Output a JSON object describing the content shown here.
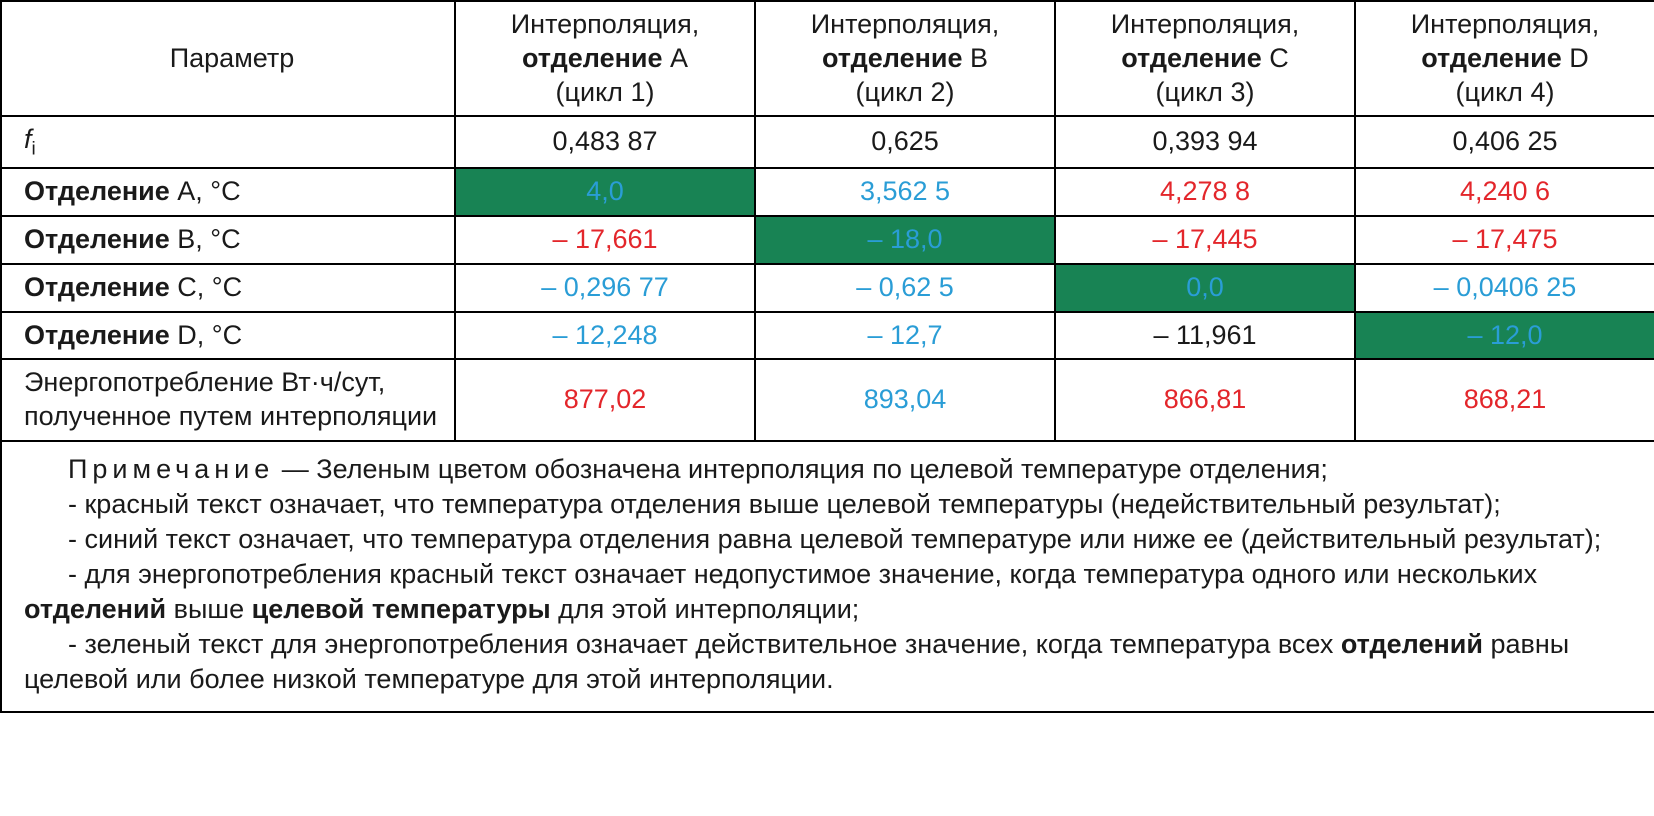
{
  "colors": {
    "text": "#1a1a1a",
    "red": "#e3262b",
    "blue": "#2a9dd6",
    "green_bg": "#188354",
    "border": "#000000",
    "background": "#ffffff"
  },
  "header": {
    "param": "Параметр",
    "cols": [
      {
        "top": "Интерполяция,",
        "mid_pre": "отделение",
        "mid_suf": " A",
        "bot": "(цикл 1)"
      },
      {
        "top": "Интерполяция,",
        "mid_pre": "отделение",
        "mid_suf": " B",
        "bot": "(цикл 2)"
      },
      {
        "top": "Интерполяция,",
        "mid_pre": "отделение",
        "mid_suf": " C",
        "bot": "(цикл 3)"
      },
      {
        "top": "Интерполяция,",
        "mid_pre": "отделение",
        "mid_suf": " D",
        "bot": "(цикл 4)"
      }
    ]
  },
  "rows": [
    {
      "label_html": "fi_sub",
      "cells": [
        {
          "text": "0,483 87",
          "style": "plain"
        },
        {
          "text": "0,625",
          "style": "plain"
        },
        {
          "text": "0,393 94",
          "style": "plain"
        },
        {
          "text": "0,406 25",
          "style": "plain"
        }
      ]
    },
    {
      "label_bold": "Отделение",
      "label_suf": " A, °C",
      "cells": [
        {
          "text": "4,0",
          "style": "green"
        },
        {
          "text": "3,562 5",
          "style": "blue"
        },
        {
          "text": "4,278 8",
          "style": "red"
        },
        {
          "text": "4,240 6",
          "style": "red"
        }
      ]
    },
    {
      "label_bold": "Отделение",
      "label_suf": " B, °C",
      "cells": [
        {
          "text": "– 17,661",
          "style": "red"
        },
        {
          "text": "– 18,0",
          "style": "green"
        },
        {
          "text": "– 17,445",
          "style": "red"
        },
        {
          "text": "– 17,475",
          "style": "red"
        }
      ]
    },
    {
      "label_bold": "Отделение",
      "label_suf": " C, °C",
      "cells": [
        {
          "text": "– 0,296 77",
          "style": "blue"
        },
        {
          "text": "– 0,62 5",
          "style": "blue"
        },
        {
          "text": "0,0",
          "style": "green"
        },
        {
          "text": "– 0,0406 25",
          "style": "blue"
        }
      ]
    },
    {
      "label_bold": "Отделение",
      "label_suf": " D, °C",
      "cells": [
        {
          "text": "– 12,248",
          "style": "blue"
        },
        {
          "text": "– 12,7",
          "style": "blue"
        },
        {
          "text": "– 11,961",
          "style": "plain"
        },
        {
          "text": "– 12,0",
          "style": "green"
        }
      ]
    },
    {
      "label_plain": "Энергопотребление Вт·ч/сут, полученное путем интерполяции",
      "cells": [
        {
          "text": "877,02",
          "style": "red"
        },
        {
          "text": "893,04",
          "style": "blue"
        },
        {
          "text": "866,81",
          "style": "red"
        },
        {
          "text": "868,21",
          "style": "red"
        }
      ]
    }
  ],
  "note": {
    "lead_spaced": "Примечание",
    "lead_rest": " — Зеленым цветом обозначена интерполяция по целевой температуре отделения;",
    "l2": "- красный текст означает, что температура отделения выше целевой температуры (недействительный результат);",
    "l3": "- синий текст означает, что температура отделения равна целевой температуре или ниже ее (действительный результат);",
    "l4_a": "- для энергопотребления красный текст означает недопустимое значение, когда температура одного или нескольких ",
    "l4_b1": "отделений",
    "l4_c": " выше ",
    "l4_b2": "целевой температуры",
    "l4_d": " для этой интерполяции;",
    "l5_a": "- зеленый текст для энергопотребления означает действительное значение, когда температура всех ",
    "l5_b": "отделений",
    "l5_c": " равны целевой или более низкой температуре для этой интерполяции."
  }
}
